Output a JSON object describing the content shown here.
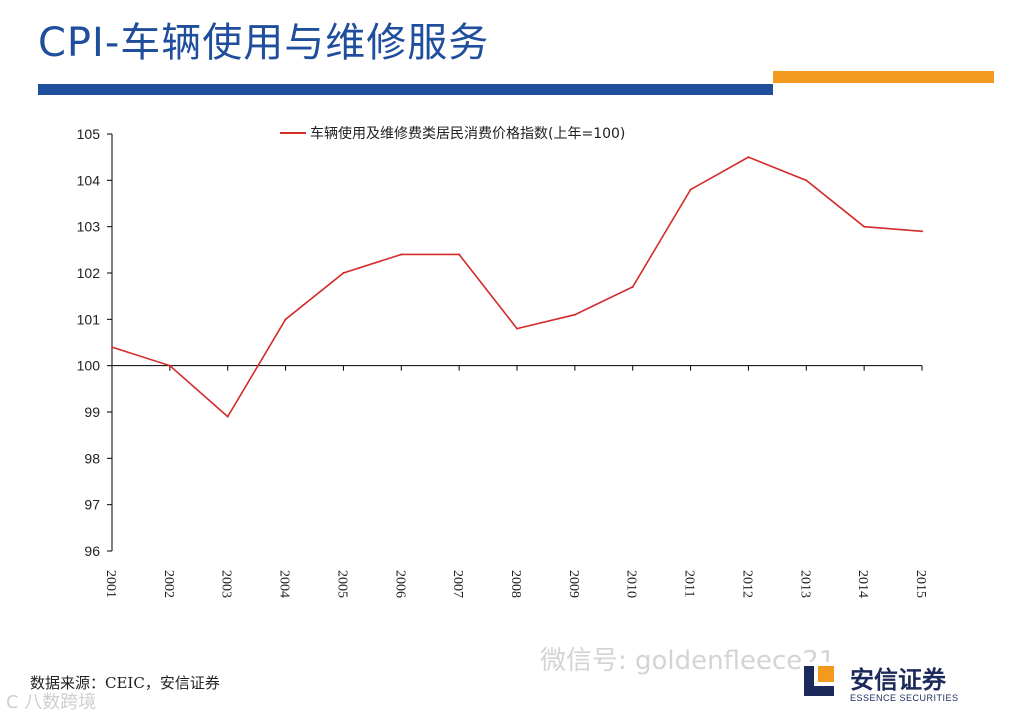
{
  "page": {
    "title": "CPI-车辆使用与维修服务",
    "source": "数据来源：CEIC，安信证券",
    "watermark_left": "C 八数跨境",
    "watermark_right": "微信号: goldenfleece21",
    "logo_cn": "安信证券",
    "logo_en": "ESSENCE SECURITIES",
    "colors": {
      "title": "#1f4e9c",
      "bar_blue": "#1f4e9c",
      "bar_orange": "#f39a1e",
      "line": "#d42b2b"
    }
  },
  "chart_data": {
    "type": "line",
    "x": [
      "2001",
      "2002",
      "2003",
      "2004",
      "2005",
      "2006",
      "2007",
      "2008",
      "2009",
      "2010",
      "2011",
      "2012",
      "2013",
      "2014",
      "2015"
    ],
    "series": [
      {
        "name": "车辆使用及维修费类居民消费价格指数(上年=100)",
        "values": [
          100.4,
          100.0,
          98.9,
          101.0,
          102.0,
          102.4,
          102.4,
          100.8,
          101.1,
          101.7,
          103.8,
          104.5,
          104.0,
          103.0,
          102.9
        ]
      }
    ],
    "ylim": [
      96,
      105
    ],
    "yticks": [
      "96",
      "97",
      "98",
      "99",
      "100",
      "101",
      "102",
      "103",
      "104",
      "105"
    ],
    "baseline": 100,
    "legend": "top-center",
    "grid": false
  }
}
